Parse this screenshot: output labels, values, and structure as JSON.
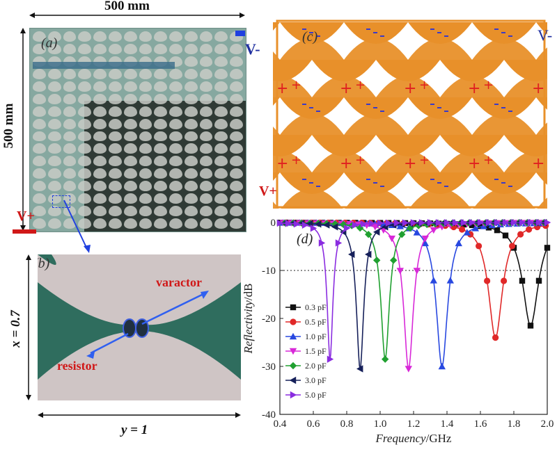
{
  "panel_a": {
    "label": "(a)",
    "width_label": "500 mm",
    "height_label": "500 mm",
    "v_minus": "V-",
    "v_plus": "V+"
  },
  "panel_b": {
    "label": "(b)",
    "varactor": "varactor",
    "resistor": "resistor",
    "x_dim": "x = 0.7",
    "y_dim": "y = 1"
  },
  "panel_c": {
    "label": "(c)",
    "v_minus": "V-",
    "v_plus": "V+"
  },
  "colors": {
    "orange": "#e8902a",
    "minus_blue": "#3a3ac8",
    "plus_red": "#e02020"
  },
  "chart_data": {
    "type": "line",
    "panel_label": "(d)",
    "xlabel_italic": "Frequency",
    "xlabel_unit": "/GHz",
    "ylabel_italic": "Reflectivity",
    "ylabel_unit": "/dB",
    "xlim": [
      0.4,
      2.0
    ],
    "ylim": [
      -40,
      0
    ],
    "xticks": [
      "0.4",
      "0.6",
      "0.8",
      "1.0",
      "1.2",
      "1.4",
      "1.6",
      "1.8",
      "2.0"
    ],
    "yticks": [
      "0",
      "-10",
      "-20",
      "-30",
      "-40"
    ],
    "reference_line": -10,
    "series": [
      {
        "name": "0.3 pF",
        "color": "#111111",
        "marker": "square",
        "resonance": 1.9,
        "min_db": -21.5
      },
      {
        "name": "0.5 pF",
        "color": "#e02828",
        "marker": "circle",
        "resonance": 1.69,
        "min_db": -24
      },
      {
        "name": "1.0 pF",
        "color": "#2848e0",
        "marker": "triangle-up",
        "resonance": 1.37,
        "min_db": -30
      },
      {
        "name": "1.5 pF",
        "color": "#d828d8",
        "marker": "triangle-down",
        "resonance": 1.17,
        "min_db": -30.5
      },
      {
        "name": "2.0 pF",
        "color": "#20a030",
        "marker": "diamond",
        "resonance": 1.03,
        "min_db": -28.5
      },
      {
        "name": "3.0 pF",
        "color": "#16205a",
        "marker": "triangle-left",
        "resonance": 0.88,
        "min_db": -30.5
      },
      {
        "name": "5.0 pF",
        "color": "#8a2ce0",
        "marker": "triangle-right",
        "resonance": 0.7,
        "min_db": -28.5
      }
    ]
  }
}
